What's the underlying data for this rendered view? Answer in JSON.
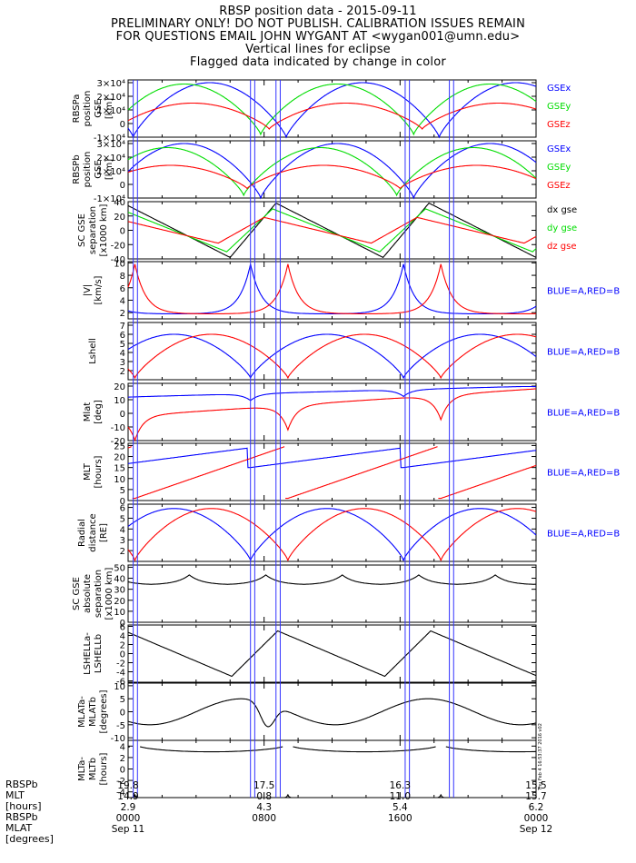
{
  "header": {
    "title": "RBSP position data - 2015-09-11",
    "line2": "PRELIMINARY ONLY! DO NOT PUBLISH. CALIBRATION ISSUES REMAIN",
    "line3": "FOR QUESTIONS EMAIL JOHN WYGANT AT <wygan001@umn.edu>",
    "line4": "Vertical lines for eclipse",
    "line5": "Flagged data indicated by change in color"
  },
  "side_stamp": "Thu Feb 4 16:53:37 2016 v02",
  "colors": {
    "blue": "#0000ff",
    "red": "#ff0000",
    "green": "#00dd00",
    "black": "#000000",
    "eclipse": "#3333ff"
  },
  "eclipse_lines_hours": [
    0.3,
    0.55,
    7.2,
    7.45,
    8.7,
    8.95,
    16.3,
    16.55,
    18.9,
    19.15
  ],
  "chart_data": [
    {
      "id": "p1",
      "type": "line",
      "ylabel": [
        "RBSPa",
        "position",
        "GSE",
        "[km]"
      ],
      "yticks": [
        "-1×10⁴",
        "0",
        "1×10⁴",
        "2×10⁴",
        "3×10⁴"
      ],
      "ylim": [
        -10000,
        32000
      ],
      "legend": [
        {
          "name": "GSEx",
          "color": "#0000ff"
        },
        {
          "name": "GSEy",
          "color": "#00dd00"
        },
        {
          "name": "GSEz",
          "color": "#ff0000"
        }
      ],
      "series": [
        {
          "name": "GSEx",
          "kind": "arcs",
          "min": -10000,
          "max": 30000,
          "period": 9.0,
          "phase": 0.3
        },
        {
          "name": "GSEy",
          "kind": "arcs",
          "min": -8000,
          "max": 29000,
          "period": 9.0,
          "phase": -1.2
        },
        {
          "name": "GSEz",
          "kind": "arcs",
          "min": -4000,
          "max": 15000,
          "period": 9.0,
          "phase": -0.7
        }
      ]
    },
    {
      "id": "p2",
      "type": "line",
      "ylabel": [
        "RBSPb",
        "position",
        "GSE",
        "[km]"
      ],
      "yticks": [
        "-1×10⁴",
        "0",
        "1×10⁴",
        "2×10⁴",
        "3×10⁴"
      ],
      "ylim": [
        -10000,
        32000
      ],
      "legend": [
        {
          "name": "GSEx",
          "color": "#0000ff"
        },
        {
          "name": "GSEy",
          "color": "#00dd00"
        },
        {
          "name": "GSEz",
          "color": "#ff0000"
        }
      ],
      "series": [
        {
          "name": "GSEx",
          "kind": "arcs",
          "min": -10000,
          "max": 30000,
          "period": 9.0,
          "phase": -1.2
        },
        {
          "name": "GSEy",
          "kind": "arcs",
          "min": -8000,
          "max": 27000,
          "period": 9.0,
          "phase": -2.2
        },
        {
          "name": "GSEz",
          "kind": "arcs",
          "min": -3000,
          "max": 14000,
          "period": 9.0,
          "phase": -2.0
        }
      ]
    },
    {
      "id": "p3",
      "type": "line",
      "ylabel": [
        "SC GSE",
        "separation",
        "[x1000 km]"
      ],
      "yticks": [
        "-40",
        "-20",
        "0",
        "20",
        "40"
      ],
      "ylim": [
        -40,
        40
      ],
      "legend": [
        {
          "name": "dx gse",
          "color": "#000000"
        },
        {
          "name": "dy gse",
          "color": "#00dd00"
        },
        {
          "name": "dz gse",
          "color": "#ff0000"
        }
      ],
      "series": [
        {
          "name": "dx gse",
          "kind": "saw",
          "amp": 38,
          "period": 9.0,
          "peak": 8.7
        },
        {
          "name": "dy gse",
          "kind": "saw",
          "amp": 30,
          "period": 9.0,
          "peak": 8.5
        },
        {
          "name": "dz gse",
          "kind": "saw",
          "amp": 18,
          "period": 9.0,
          "peak": 8.0
        }
      ]
    },
    {
      "id": "p4",
      "type": "line",
      "ylabel": [
        "|V|",
        "[km/s]"
      ],
      "yticks": [
        "2",
        "4",
        "6",
        "8",
        "10"
      ],
      "ylim": [
        1,
        10.2
      ],
      "legend": [
        {
          "name": "BLUE=A,RED=B",
          "color": "#0000ff"
        }
      ],
      "series": [
        {
          "name": "A",
          "kind": "spike",
          "min": 1.8,
          "max": 9.8,
          "period": 9.0,
          "peak": 7.2
        },
        {
          "name": "B",
          "kind": "spike",
          "min": 1.8,
          "max": 9.8,
          "period": 9.0,
          "peak": 0.4
        }
      ]
    },
    {
      "id": "p5",
      "type": "line",
      "ylabel": [
        "Lshell"
      ],
      "yticks": [
        "2",
        "3",
        "4",
        "5",
        "6",
        "7"
      ],
      "ylim": [
        1,
        7.3
      ],
      "legend": [
        {
          "name": "BLUE=A,RED=B",
          "color": "#0000ff"
        }
      ],
      "series": [
        {
          "name": "A",
          "kind": "arcs",
          "min": 1.2,
          "max": 6.0,
          "period": 9.0,
          "phase": 7.2
        },
        {
          "name": "B",
          "kind": "arcs",
          "min": 1.2,
          "max": 6.0,
          "period": 9.0,
          "phase": 0.4
        }
      ]
    },
    {
      "id": "p6",
      "type": "line",
      "ylabel": [
        "Mlat",
        "[deg]"
      ],
      "yticks": [
        "-20",
        "-10",
        "0",
        "10",
        "20"
      ],
      "ylim": [
        -20,
        22
      ],
      "legend": [
        {
          "name": "BLUE=A,RED=B",
          "color": "#0000ff"
        }
      ],
      "series": [
        {
          "name": "A",
          "kind": "mlat",
          "base": 12,
          "drift": 8,
          "dip": -5,
          "period": 9.0,
          "peak": 7.2
        },
        {
          "name": "B",
          "kind": "mlat",
          "base": -2,
          "drift": 20,
          "dip": -18,
          "period": 9.0,
          "peak": 0.4
        }
      ]
    },
    {
      "id": "p7",
      "type": "line",
      "ylabel": [
        "MLT",
        "[hours]"
      ],
      "yticks": [
        "0",
        "5",
        "10",
        "15",
        "20",
        "25"
      ],
      "ylim": [
        0,
        26
      ],
      "legend": [
        {
          "name": "BLUE=A,RED=B",
          "color": "#0000ff"
        }
      ],
      "series": [
        {
          "name": "A",
          "kind": "mlt",
          "low": 15,
          "high": 24,
          "period": 9.0,
          "peak": 7.2
        },
        {
          "name": "B",
          "kind": "mlt",
          "low": 1,
          "high": 25,
          "period": 9.0,
          "peak": 0.4
        }
      ]
    },
    {
      "id": "p8",
      "type": "line",
      "ylabel": [
        "Radial",
        "distance",
        "[RE]"
      ],
      "yticks": [
        "2",
        "3",
        "4",
        "5",
        "6"
      ],
      "ylim": [
        1,
        6.3
      ],
      "legend": [
        {
          "name": "BLUE=A,RED=B",
          "color": "#0000ff"
        }
      ],
      "series": [
        {
          "name": "A",
          "kind": "arcs",
          "min": 1.1,
          "max": 5.9,
          "period": 9.0,
          "phase": 7.2
        },
        {
          "name": "B",
          "kind": "arcs",
          "min": 1.1,
          "max": 5.9,
          "period": 9.0,
          "phase": 0.4
        }
      ]
    },
    {
      "id": "p9",
      "type": "line",
      "ylabel": [
        "SC GSE",
        "absolute",
        "separation",
        "[x1000 km]"
      ],
      "yticks": [
        "0",
        "10",
        "20",
        "30",
        "40",
        "50"
      ],
      "ylim": [
        0,
        52
      ],
      "legend": [],
      "series": [
        {
          "name": "sep",
          "kind": "bumps",
          "min": 34,
          "max": 43,
          "period": 4.5,
          "peak": 3.6
        }
      ]
    },
    {
      "id": "p10",
      "type": "line",
      "ylabel": [
        "LSHELLa-",
        "LSHELLb"
      ],
      "yticks": [
        "-6",
        "-4",
        "-2",
        "0",
        "2",
        "4",
        "6"
      ],
      "ylim": [
        -6.3,
        6.3
      ],
      "legend": [],
      "series": [
        {
          "name": "dL",
          "kind": "saw",
          "amp": 5.0,
          "period": 9.0,
          "peak": 8.8
        }
      ]
    },
    {
      "id": "p11",
      "type": "line",
      "ylabel": [
        "MLATa-",
        "MLATb",
        "[degrees]"
      ],
      "yticks": [
        "-10",
        "-5",
        "0",
        "5",
        "10"
      ],
      "ylim": [
        -11,
        11
      ],
      "legend": [],
      "series": [
        {
          "name": "dMLAT",
          "kind": "dmlat"
        }
      ]
    },
    {
      "id": "p12",
      "type": "line",
      "ylabel": [
        "MLTa-",
        "MLTb",
        "[hours]"
      ],
      "yticks": [
        "-4",
        "-2",
        "0",
        "2",
        "4"
      ],
      "ylim": [
        -5,
        5
      ],
      "legend": [],
      "series": [
        {
          "name": "dMLT",
          "kind": "dmlt"
        }
      ]
    }
  ],
  "bottom": {
    "labels": [
      "RBSPb",
      "MLT",
      "[hours]",
      "RBSPb",
      "MLAT",
      "[degrees]"
    ],
    "columns": [
      {
        "v1": "19.8",
        "v2": "14.9",
        "v3": "2.9",
        "time": "0000",
        "date": "Sep 11"
      },
      {
        "v1": "17.5",
        "v2": "0.8",
        "v3": "4.3",
        "time": "0800",
        "date": ""
      },
      {
        "v1": "16.3",
        "v2": "11.0",
        "v3": "5.4",
        "time": "1600",
        "date": ""
      },
      {
        "v1": "15.5",
        "v2": "15.7",
        "v3": "6.2",
        "time": "0000",
        "date": "Sep 12"
      }
    ]
  }
}
